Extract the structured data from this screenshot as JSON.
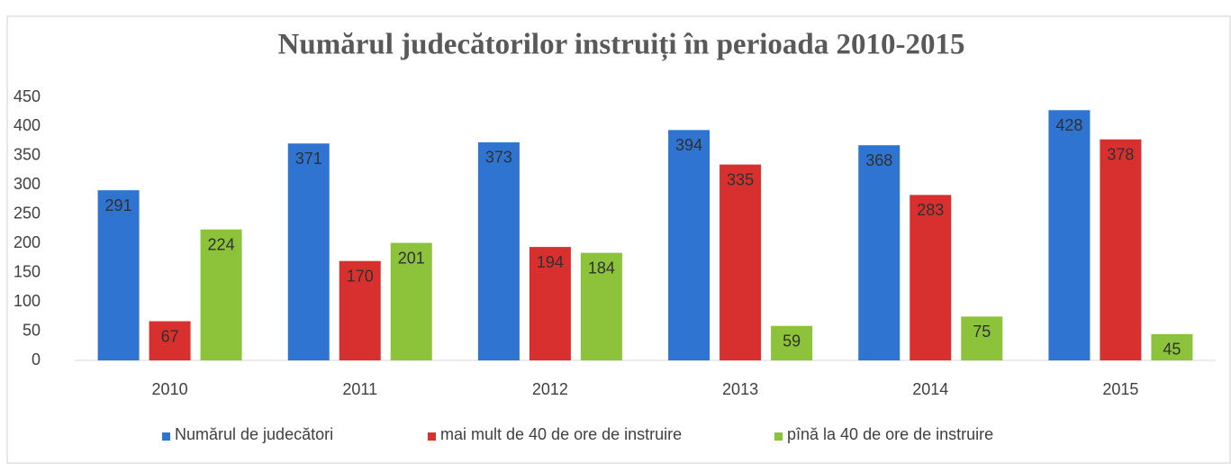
{
  "chart_data": {
    "type": "bar",
    "title": "Numărul judecătorilor instruiți în perioada 2010-2015",
    "categories": [
      "2010",
      "2011",
      "2012",
      "2013",
      "2014",
      "2015"
    ],
    "series": [
      {
        "name": "Numărul de judecători",
        "color": "#2f74d0",
        "values": [
          291,
          371,
          373,
          394,
          368,
          428
        ]
      },
      {
        "name": "mai mult de 40 de ore de instruire",
        "color": "#d8302e",
        "values": [
          67,
          170,
          194,
          335,
          283,
          378
        ]
      },
      {
        "name": "pînă la 40 de ore de instruire",
        "color": "#8dc33b",
        "values": [
          224,
          201,
          184,
          59,
          75,
          45
        ]
      }
    ],
    "ylim": [
      0,
      450
    ],
    "yticks": [
      0,
      50,
      100,
      150,
      200,
      250,
      300,
      350,
      400,
      450
    ],
    "grid": false,
    "legend": "bottom"
  }
}
